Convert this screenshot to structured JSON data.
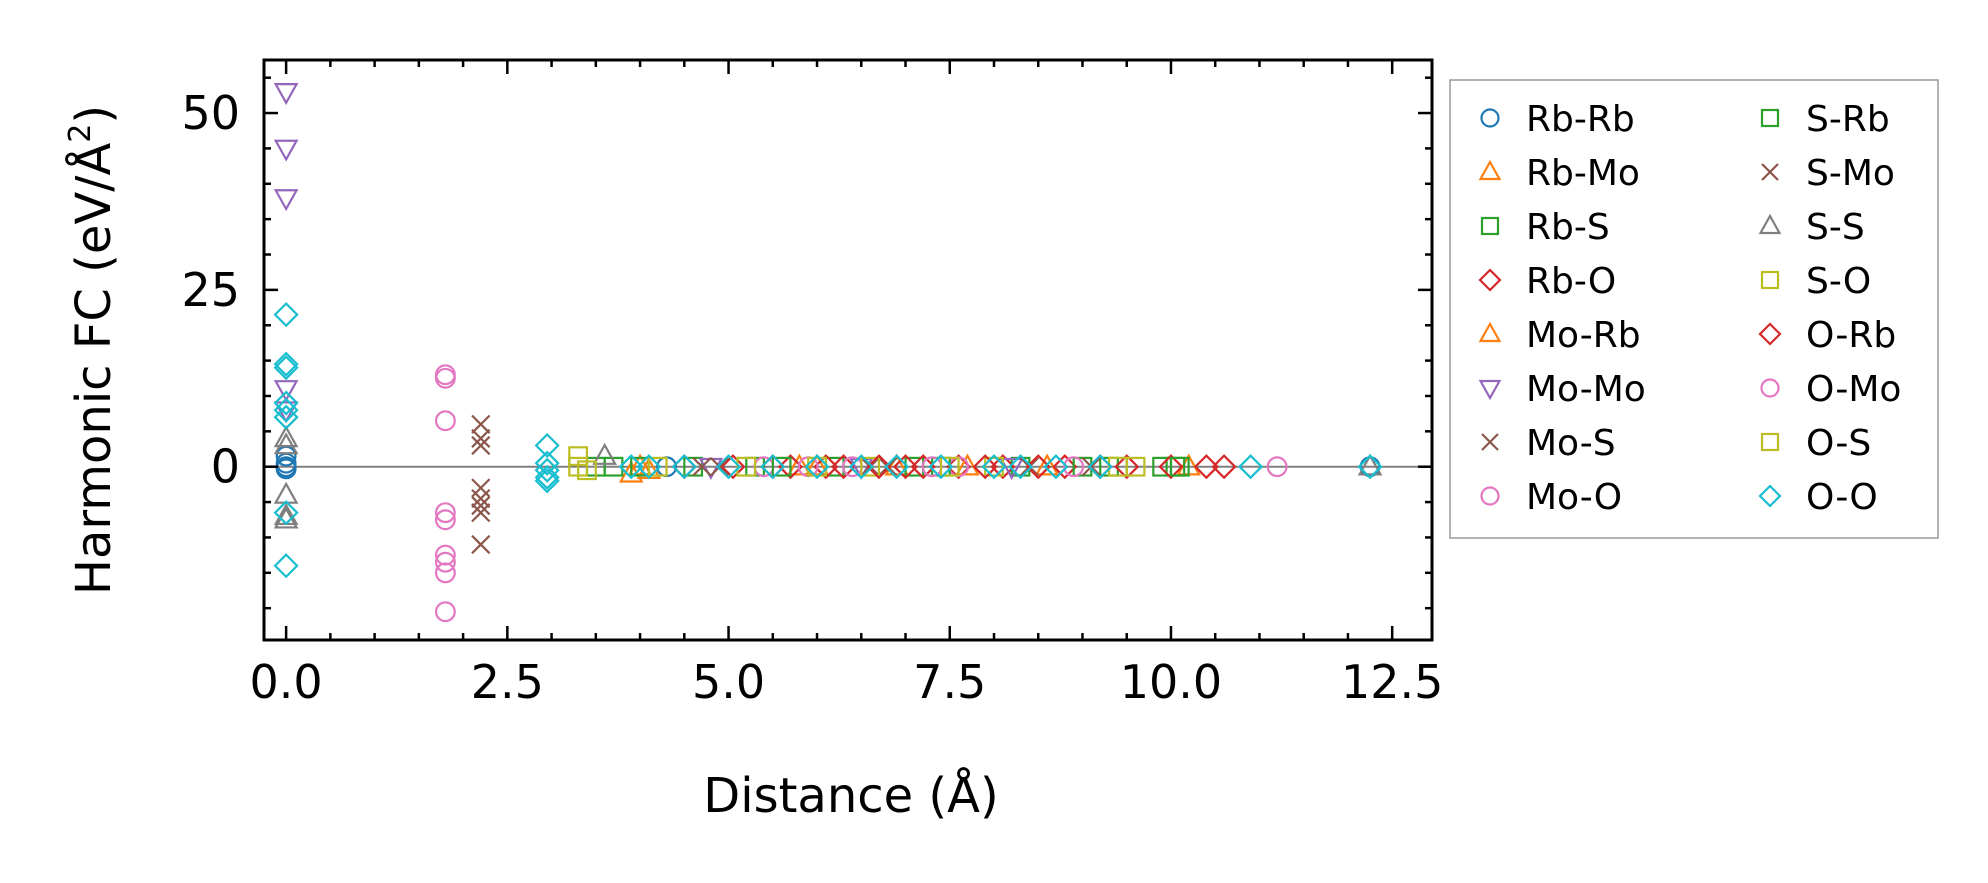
{
  "chart_data": {
    "type": "scatter",
    "xlabel": "Distance (Å)",
    "ylabel_main": "Harmonic FC (eV/Å",
    "ylabel_sup": "2",
    "ylabel_close": ")",
    "xlim": [
      -0.25,
      12.95
    ],
    "ylim": [
      -24.5,
      57.5
    ],
    "xticks": [
      0.0,
      2.5,
      5.0,
      7.5,
      10.0,
      12.5
    ],
    "xtick_labels": [
      "0.0",
      "2.5",
      "5.0",
      "7.5",
      "10.0",
      "12.5"
    ],
    "yticks": [
      0,
      25,
      50
    ],
    "ytick_labels": [
      "0",
      "25",
      "50"
    ],
    "x_minor_step": 0.5,
    "y_minor_step": 5,
    "zero_line": true,
    "legend_position": "outside-right",
    "series": [
      {
        "name": "Rb-Rb",
        "marker": "circle",
        "color": "#1f77b4",
        "x": [
          0,
          0,
          0,
          0,
          4.3,
          12.25
        ],
        "y": [
          1.5,
          0.5,
          0,
          -0.3,
          0,
          0
        ]
      },
      {
        "name": "Rb-Mo",
        "marker": "triangle-up",
        "color": "#ff7f0e",
        "x": [
          3.9,
          4.1,
          5.8,
          6.9,
          8.6,
          10.2
        ],
        "y": [
          -1,
          -0.5,
          0,
          0,
          0,
          0
        ]
      },
      {
        "name": "Rb-S",
        "marker": "square",
        "color": "#2ca02c",
        "x": [
          3.5,
          3.7,
          4.6,
          5.3,
          6.2,
          7.1,
          8.3,
          9.3,
          9.9,
          10.05
        ],
        "y": [
          0,
          0,
          0,
          0,
          0,
          0,
          0,
          0,
          0,
          0
        ]
      },
      {
        "name": "Rb-O",
        "marker": "diamond",
        "color": "#d62728",
        "x": [
          4.5,
          5.05,
          5.7,
          6.3,
          7.0,
          7.6,
          8.1,
          8.8,
          9.5,
          10.0
        ],
        "y": [
          0,
          0,
          0,
          0,
          0,
          0,
          0,
          0,
          0,
          0
        ]
      },
      {
        "name": "Mo-Rb",
        "marker": "triangle-up",
        "color": "#ff7f0e",
        "x": [
          4.0,
          6.0,
          7.7
        ],
        "y": [
          0,
          0,
          0
        ]
      },
      {
        "name": "Mo-Mo",
        "marker": "triangle-down",
        "color": "#9467bd",
        "x": [
          0,
          0,
          0,
          0,
          0,
          4.8,
          6.5,
          8.2
        ],
        "y": [
          53,
          45,
          38,
          11,
          8,
          0,
          0,
          0
        ]
      },
      {
        "name": "Mo-S",
        "marker": "x",
        "color": "#8c564b",
        "x": [
          2.2,
          2.2,
          2.2,
          2.2,
          2.2,
          2.2,
          2.2,
          2.2,
          4.7,
          6.6,
          8.4
        ],
        "y": [
          6,
          4,
          3,
          -3,
          -4.5,
          -5.5,
          -6.5,
          -11,
          0,
          0,
          0
        ]
      },
      {
        "name": "Mo-O",
        "marker": "circle",
        "color": "#e377c2",
        "x": [
          1.8,
          1.8,
          1.8,
          1.8,
          1.8,
          1.8,
          1.8,
          1.8,
          1.8,
          5.4,
          6.4,
          7.6,
          11.2
        ],
        "y": [
          13,
          12.5,
          6.5,
          -6.5,
          -7.5,
          -12.5,
          -13.5,
          -15,
          -20.5,
          0,
          0,
          0,
          0
        ]
      },
      {
        "name": "S-Rb",
        "marker": "square",
        "color": "#2ca02c",
        "x": [
          4.0,
          5.6,
          7.4,
          9.0,
          10.1
        ],
        "y": [
          0,
          0,
          0,
          0,
          0
        ]
      },
      {
        "name": "S-Mo",
        "marker": "x",
        "color": "#8c564b",
        "x": [
          4.9,
          6.8,
          9.1
        ],
        "y": [
          0,
          0,
          0
        ]
      },
      {
        "name": "S-S",
        "marker": "triangle-up",
        "color": "#7f7f7f",
        "x": [
          0,
          0,
          0,
          0,
          0,
          3.6,
          12.25
        ],
        "y": [
          4,
          3,
          -4,
          -7,
          -7.5,
          1.5,
          0
        ]
      },
      {
        "name": "S-O",
        "marker": "square",
        "color": "#bcbd22",
        "x": [
          3.3,
          3.3,
          3.4,
          5.2,
          6.6,
          8.0,
          9.6
        ],
        "y": [
          1.5,
          0,
          -0.5,
          0,
          0,
          0,
          0
        ]
      },
      {
        "name": "O-Rb",
        "marker": "diamond",
        "color": "#d62728",
        "x": [
          5.5,
          6.1,
          6.7,
          7.2,
          7.9,
          8.5,
          9.2,
          10.4,
          10.6
        ],
        "y": [
          0,
          0,
          0,
          0,
          0,
          0,
          0,
          0,
          0
        ]
      },
      {
        "name": "O-Mo",
        "marker": "circle",
        "color": "#e377c2",
        "x": [
          5.9,
          7.3,
          8.9
        ],
        "y": [
          0,
          0,
          0
        ]
      },
      {
        "name": "O-S",
        "marker": "square",
        "color": "#bcbd22",
        "x": [
          4.2,
          6.0,
          7.5,
          9.4
        ],
        "y": [
          0,
          0,
          0,
          0
        ]
      },
      {
        "name": "O-O",
        "marker": "diamond",
        "color": "#17becf",
        "x": [
          0,
          0,
          0,
          0,
          0,
          0,
          0,
          0,
          2.95,
          2.95,
          2.95,
          2.95,
          2.95,
          3.9,
          4.1,
          4.5,
          5.0,
          5.5,
          6.0,
          6.5,
          6.9,
          7.4,
          8.0,
          8.3,
          8.7,
          9.2,
          10.9,
          12.25
        ],
        "y": [
          21.5,
          14.5,
          14,
          9,
          8,
          7,
          -6.5,
          -14,
          3,
          0.5,
          -0.5,
          -1.5,
          -2,
          0,
          0,
          0,
          0,
          0,
          0,
          0,
          0,
          0,
          0,
          0,
          0,
          0,
          0,
          0
        ]
      }
    ]
  }
}
